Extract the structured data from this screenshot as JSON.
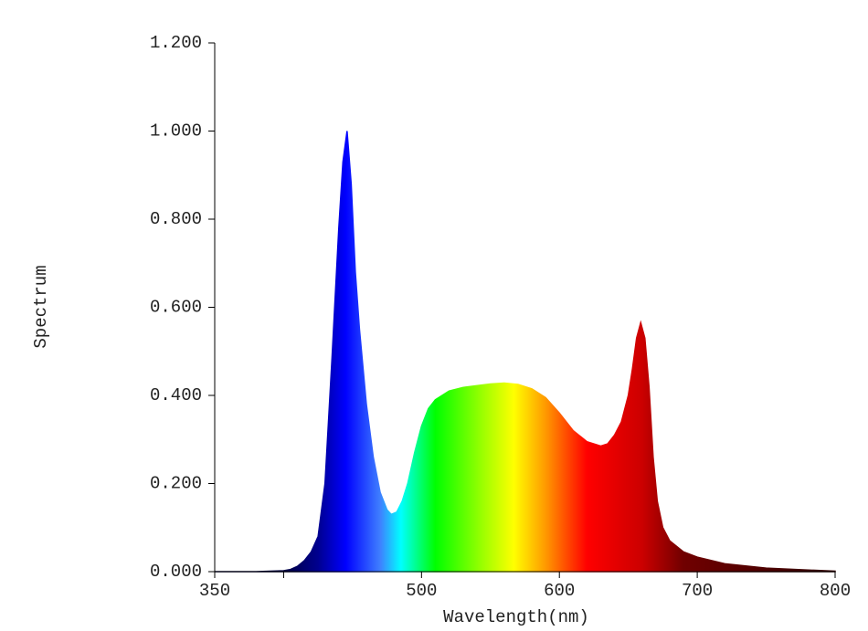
{
  "chart_data": {
    "type": "area",
    "xlabel": "Wavelength(nm)",
    "ylabel": "Spectrum",
    "xlim": [
      350,
      800
    ],
    "ylim": [
      0,
      1.2
    ],
    "xticks": [
      350,
      500,
      600,
      700,
      800
    ],
    "xticks_unlabeled": [
      400
    ],
    "yticks": [
      {
        "value": 0,
        "label": "0.000"
      },
      {
        "value": 0.2,
        "label": "0.200"
      },
      {
        "value": 0.4,
        "label": "0.400"
      },
      {
        "value": 0.6,
        "label": "0.600"
      },
      {
        "value": 0.8,
        "label": "0.800"
      },
      {
        "value": 1.0,
        "label": "1.000"
      },
      {
        "value": 1.2,
        "label": "1.200"
      }
    ],
    "grid": false,
    "fill_gradient": [
      {
        "at": 400,
        "color": "#000040"
      },
      {
        "at": 425,
        "color": "#000090"
      },
      {
        "at": 445,
        "color": "#0000ff"
      },
      {
        "at": 470,
        "color": "#3f7fff"
      },
      {
        "at": 485,
        "color": "#00ffff"
      },
      {
        "at": 510,
        "color": "#00ff00"
      },
      {
        "at": 545,
        "color": "#9fff00"
      },
      {
        "at": 567,
        "color": "#ffff00"
      },
      {
        "at": 590,
        "color": "#ff9900"
      },
      {
        "at": 620,
        "color": "#ff0000"
      },
      {
        "at": 660,
        "color": "#cc0000"
      },
      {
        "at": 690,
        "color": "#700000"
      },
      {
        "at": 800,
        "color": "#300000"
      }
    ],
    "x": [
      350,
      360,
      370,
      380,
      390,
      400,
      405,
      410,
      415,
      420,
      425,
      430,
      435,
      440,
      443,
      446,
      449,
      452,
      455,
      460,
      465,
      470,
      475,
      478,
      482,
      486,
      490,
      495,
      500,
      505,
      510,
      520,
      530,
      540,
      550,
      560,
      570,
      580,
      590,
      600,
      610,
      620,
      630,
      635,
      640,
      645,
      650,
      653,
      656,
      659,
      662,
      665,
      668,
      671,
      675,
      680,
      690,
      700,
      720,
      750,
      800
    ],
    "values": [
      0,
      0,
      0,
      0,
      0.001,
      0.002,
      0.005,
      0.012,
      0.025,
      0.045,
      0.08,
      0.2,
      0.48,
      0.78,
      0.93,
      1.0,
      0.88,
      0.68,
      0.55,
      0.38,
      0.26,
      0.18,
      0.14,
      0.13,
      0.135,
      0.16,
      0.2,
      0.27,
      0.33,
      0.37,
      0.39,
      0.41,
      0.418,
      0.422,
      0.426,
      0.428,
      0.425,
      0.415,
      0.395,
      0.36,
      0.32,
      0.295,
      0.285,
      0.29,
      0.31,
      0.34,
      0.4,
      0.46,
      0.53,
      0.565,
      0.53,
      0.42,
      0.26,
      0.16,
      0.1,
      0.07,
      0.045,
      0.033,
      0.018,
      0.008,
      0.001
    ]
  }
}
